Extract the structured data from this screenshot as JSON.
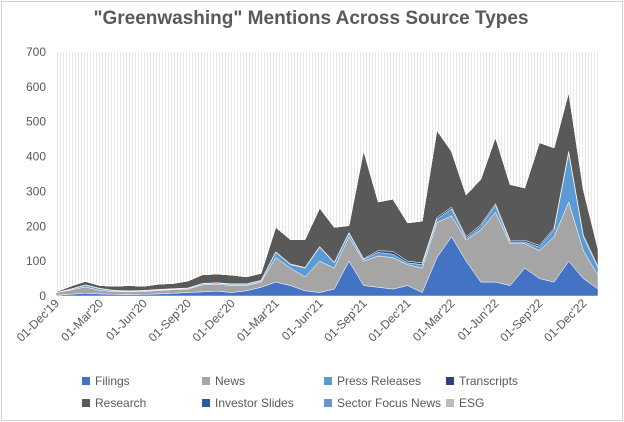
{
  "chart_data": {
    "type": "area",
    "stacked": true,
    "title": "\"Greenwashing\" Mentions Across Source Types",
    "xlabel": "",
    "ylabel": "",
    "ylim": [
      0,
      700
    ],
    "yticks": [
      0,
      100,
      200,
      300,
      400,
      500,
      600,
      700
    ],
    "grid": "vertical-hatched",
    "legend_position": "bottom",
    "x": [
      "Dec-19",
      "Jan-20",
      "Feb-20",
      "Mar-20",
      "Apr-20",
      "May-20",
      "Jun-20",
      "Jul-20",
      "Aug-20",
      "Sep-20",
      "Oct-20",
      "Nov-20",
      "Dec-20",
      "Jan-21",
      "Feb-21",
      "Mar-21",
      "Apr-21",
      "May-21",
      "Jun-21",
      "Jul-21",
      "Aug-21",
      "Sep-21",
      "Oct-21",
      "Nov-21",
      "Dec-21",
      "Jan-22",
      "Feb-22",
      "Mar-22",
      "Apr-22",
      "May-22",
      "Jun-22",
      "Jul-22",
      "Aug-22",
      "Sep-22",
      "Oct-22",
      "Nov-22",
      "Dec-22",
      "Jan-23"
    ],
    "x_tick_labels": [
      "01-Dec'19",
      "01-Mar'20",
      "01-Jun'20",
      "01-Sep'20",
      "01-Dec'20",
      "01-Mar'21",
      "01-Jun'21",
      "01-Sep'21",
      "01-Dec'21",
      "01-Mar'22",
      "01-Jun'22",
      "01-Sep'22",
      "01-Dec'22"
    ],
    "series": [
      {
        "name": "Filings",
        "values": [
          2,
          5,
          8,
          6,
          5,
          4,
          5,
          6,
          8,
          10,
          12,
          14,
          10,
          15,
          25,
          40,
          30,
          15,
          10,
          20,
          100,
          30,
          25,
          20,
          30,
          10,
          110,
          170,
          100,
          40,
          40,
          30,
          80,
          50,
          40,
          100,
          50,
          20
        ]
      },
      {
        "name": "News",
        "values": [
          8,
          12,
          18,
          10,
          8,
          8,
          8,
          10,
          10,
          10,
          20,
          20,
          20,
          15,
          15,
          70,
          50,
          40,
          90,
          60,
          70,
          70,
          90,
          90,
          60,
          70,
          100,
          60,
          60,
          150,
          200,
          120,
          70,
          80,
          130,
          170,
          80,
          40
        ]
      },
      {
        "name": "Press Releases",
        "values": [
          0,
          2,
          5,
          5,
          2,
          2,
          2,
          2,
          2,
          2,
          3,
          3,
          3,
          3,
          3,
          15,
          10,
          25,
          40,
          15,
          10,
          5,
          10,
          10,
          5,
          10,
          10,
          20,
          5,
          10,
          20,
          5,
          5,
          10,
          20,
          140,
          40,
          20
        ]
      },
      {
        "name": "Transcripts",
        "values": [
          0,
          1,
          1,
          1,
          1,
          1,
          1,
          1,
          1,
          1,
          1,
          1,
          2,
          2,
          2,
          2,
          2,
          2,
          2,
          2,
          2,
          2,
          5,
          8,
          5,
          5,
          5,
          5,
          5,
          5,
          5,
          5,
          5,
          5,
          5,
          5,
          5,
          5
        ]
      },
      {
        "name": "Research",
        "values": [
          2,
          8,
          10,
          8,
          12,
          15,
          12,
          15,
          15,
          20,
          25,
          25,
          25,
          20,
          20,
          70,
          70,
          80,
          110,
          100,
          20,
          310,
          140,
          150,
          110,
          120,
          250,
          160,
          120,
          130,
          190,
          160,
          150,
          295,
          230,
          170,
          130,
          50
        ]
      },
      {
        "name": "Investor Slides",
        "values": [
          0,
          0,
          0,
          0,
          0,
          0,
          0,
          0,
          0,
          0,
          0,
          0,
          0,
          0,
          0,
          0,
          0,
          0,
          0,
          0,
          0,
          0,
          0,
          0,
          0,
          0,
          0,
          0,
          0,
          0,
          0,
          0,
          0,
          0,
          0,
          0,
          0,
          0
        ]
      },
      {
        "name": "Sector Focus News",
        "values": [
          0,
          0,
          0,
          0,
          0,
          0,
          0,
          0,
          0,
          0,
          0,
          0,
          0,
          0,
          0,
          0,
          0,
          0,
          0,
          0,
          0,
          0,
          0,
          0,
          0,
          0,
          0,
          0,
          0,
          0,
          0,
          0,
          0,
          0,
          0,
          0,
          0,
          0
        ]
      },
      {
        "name": "ESG",
        "values": [
          0,
          0,
          0,
          0,
          0,
          0,
          0,
          0,
          0,
          0,
          0,
          0,
          0,
          0,
          0,
          0,
          0,
          0,
          0,
          0,
          0,
          0,
          0,
          0,
          0,
          0,
          0,
          0,
          0,
          0,
          0,
          0,
          0,
          0,
          0,
          0,
          0,
          0
        ]
      }
    ],
    "colors": {
      "Filings": "#4472c4",
      "News": "#a5a5a5",
      "Press Releases": "#5b9bd5",
      "Transcripts": "#264478",
      "Research": "#595959",
      "Investor Slides": "#2a5aa5",
      "Sector Focus News": "#6e94cc",
      "ESG": "#bcbcbc"
    }
  }
}
